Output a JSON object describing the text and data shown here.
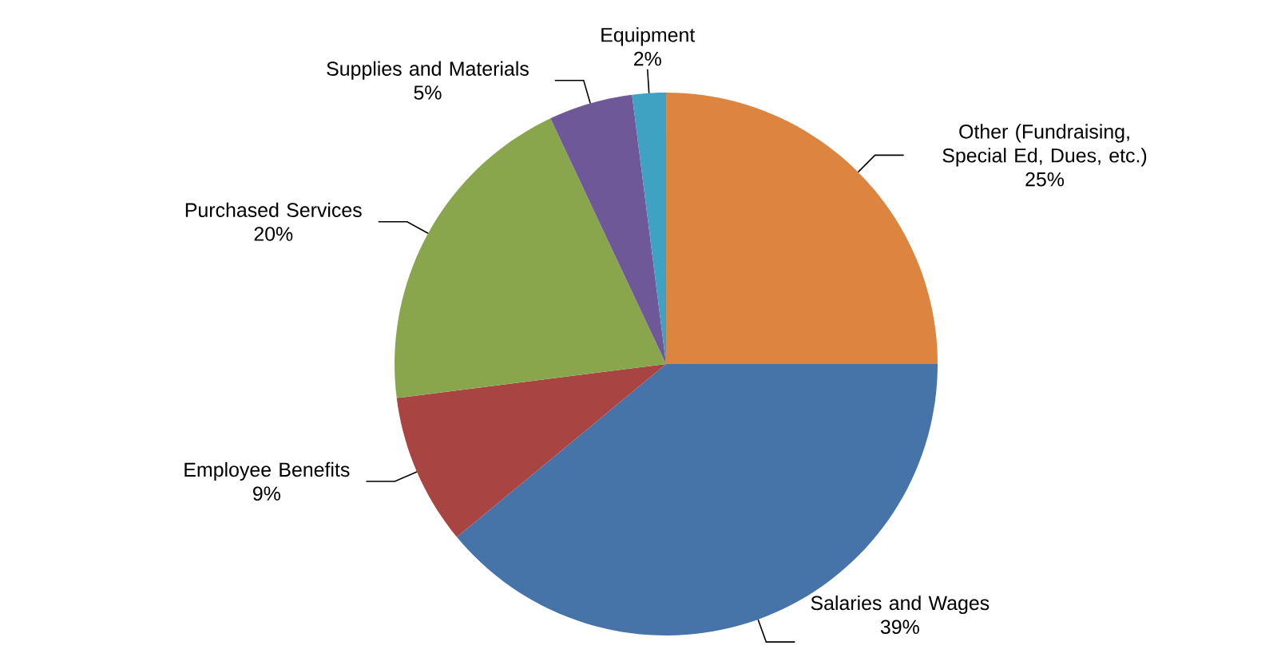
{
  "chart_data": {
    "type": "pie",
    "categories": [
      "Other (Fundraising, Special Ed, Dues, etc.)",
      "Salaries and Wages",
      "Employee Benefits",
      "Purchased Services",
      "Supplies and Materials",
      "Equipment"
    ],
    "values": [
      25,
      39,
      9,
      20,
      5,
      2
    ],
    "value_labels": [
      "25%",
      "39%",
      "9%",
      "20%",
      "5%",
      "2%"
    ],
    "colors": [
      "#dd843f",
      "#4673a8",
      "#a84543",
      "#89a64d",
      "#6e5897",
      "#3fa2c2"
    ]
  }
}
